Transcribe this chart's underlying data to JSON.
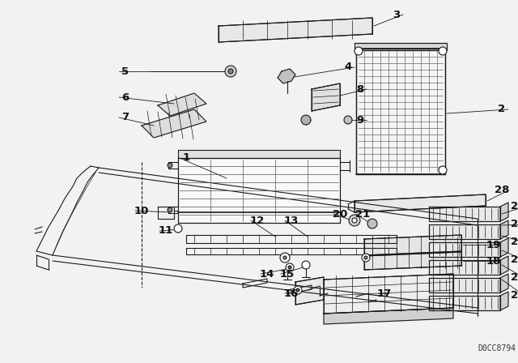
{
  "bg_color": "#f2f2f2",
  "watermark": "D0CC8794",
  "line_color": "#1a1a1a",
  "text_color": "#111111",
  "font_size": 8.5,
  "label_font_size": 9.5
}
